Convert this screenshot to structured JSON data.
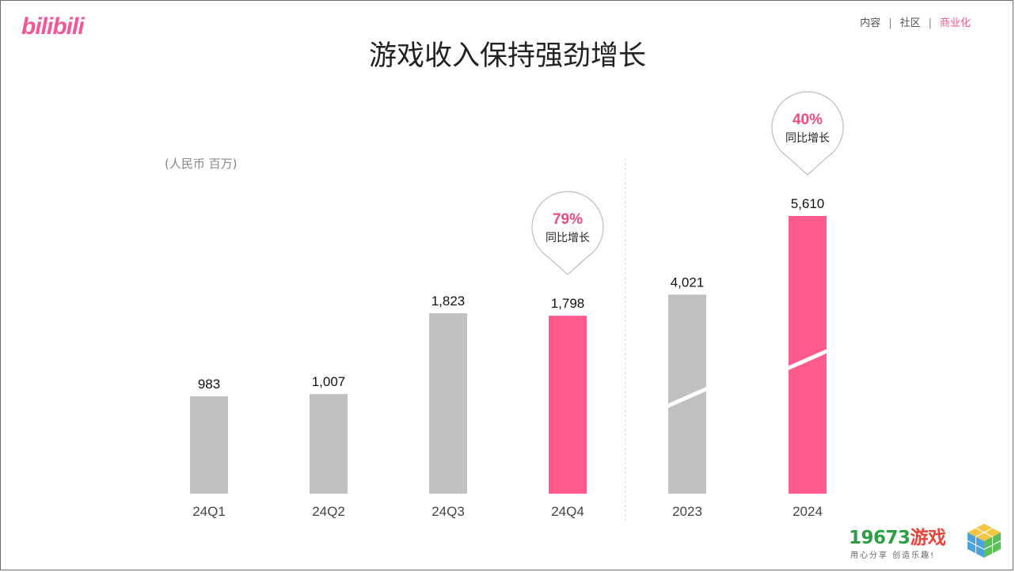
{
  "brand": {
    "logo_text": "bilibili",
    "accent": "#f0589a"
  },
  "nav": {
    "items": [
      "内容",
      "社区",
      "商业化"
    ],
    "active_index": 2
  },
  "page_title": "游戏收入保持强劲增长",
  "unit_label": "(人民币 百万)",
  "chart_data": {
    "type": "bar",
    "categories": [
      "24Q1",
      "24Q2",
      "24Q3",
      "24Q4",
      "2023",
      "2024"
    ],
    "values": [
      983,
      1007,
      1823,
      1798,
      4021,
      5610
    ],
    "value_labels": [
      "983",
      "1,007",
      "1,823",
      "1,798",
      "4,021",
      "5,610"
    ],
    "groups": [
      {
        "categories": [
          "24Q1",
          "24Q2",
          "24Q3",
          "24Q4"
        ]
      },
      {
        "categories": [
          "2023",
          "2024"
        ],
        "axis_break": true
      }
    ],
    "highlighted": [
      "24Q4",
      "2024"
    ],
    "colors": {
      "default": "#c0c0c0",
      "highlight": "#ff5a8b"
    },
    "annotations": [
      {
        "category": "24Q4",
        "value": "79%",
        "label": "同比增长"
      },
      {
        "category": "2024",
        "value": "40%",
        "label": "同比增长"
      }
    ],
    "title": "游戏收入保持强劲增长",
    "ylabel": "(人民币 百万)",
    "grid": false,
    "legend": "none"
  },
  "watermark": {
    "title_main": "19673",
    "title_suffix": "游戏",
    "subtitle": "用心分享 创造乐趣!"
  }
}
